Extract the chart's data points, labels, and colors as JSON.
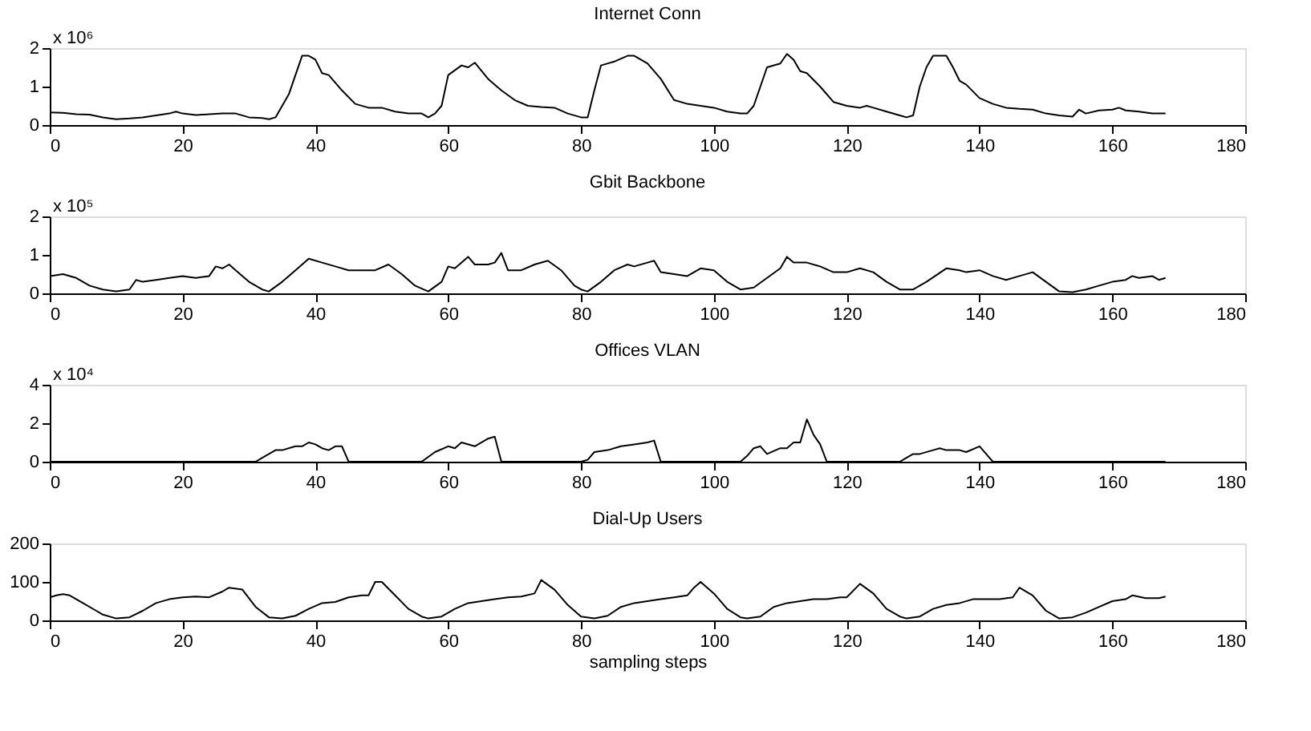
{
  "chart_data": [
    {
      "type": "line",
      "title": "Internet Conn",
      "annotations": [
        "x 10⁶"
      ],
      "grid": false,
      "xlim": [
        0,
        180
      ],
      "xticks": [
        0,
        20,
        40,
        60,
        80,
        100,
        120,
        140,
        160,
        180
      ],
      "ylim": [
        0,
        2
      ],
      "yticks": [
        0,
        1,
        2
      ],
      "x": [
        0,
        2,
        4,
        6,
        8,
        10,
        12,
        14,
        16,
        18,
        19,
        20,
        22,
        24,
        26,
        28,
        30,
        32,
        33,
        34,
        36,
        38,
        39,
        40,
        41,
        42,
        44,
        46,
        48,
        50,
        52,
        54,
        56,
        57,
        58,
        59,
        60,
        62,
        63,
        64,
        66,
        68,
        70,
        72,
        74,
        76,
        78,
        80,
        81,
        82,
        83,
        85,
        87,
        88,
        90,
        92,
        94,
        96,
        98,
        100,
        102,
        104,
        105,
        106,
        107,
        108,
        110,
        111,
        112,
        113,
        114,
        116,
        118,
        120,
        122,
        123,
        124,
        126,
        128,
        129,
        130,
        131,
        132,
        133,
        135,
        136,
        137,
        138,
        140,
        142,
        144,
        146,
        148,
        150,
        152,
        154,
        155,
        156,
        158,
        160,
        161,
        162,
        164,
        166,
        168
      ],
      "series": [
        {
          "color": "#000000",
          "values": [
            0.33,
            0.32,
            0.28,
            0.27,
            0.2,
            0.15,
            0.17,
            0.2,
            0.25,
            0.3,
            0.35,
            0.3,
            0.26,
            0.28,
            0.3,
            0.3,
            0.2,
            0.18,
            0.15,
            0.2,
            0.8,
            1.8,
            1.8,
            1.7,
            1.35,
            1.3,
            0.9,
            0.55,
            0.45,
            0.45,
            0.35,
            0.3,
            0.3,
            0.2,
            0.3,
            0.5,
            1.3,
            1.55,
            1.5,
            1.62,
            1.2,
            0.9,
            0.65,
            0.5,
            0.47,
            0.45,
            0.3,
            0.2,
            0.2,
            0.9,
            1.55,
            1.65,
            1.8,
            1.8,
            1.6,
            1.2,
            0.65,
            0.55,
            0.5,
            0.45,
            0.35,
            0.3,
            0.3,
            0.5,
            1.0,
            1.5,
            1.6,
            1.85,
            1.7,
            1.4,
            1.35,
            1.0,
            0.6,
            0.5,
            0.45,
            0.5,
            0.45,
            0.35,
            0.25,
            0.2,
            0.25,
            1.0,
            1.5,
            1.8,
            1.8,
            1.5,
            1.15,
            1.05,
            0.7,
            0.55,
            0.45,
            0.42,
            0.4,
            0.3,
            0.25,
            0.22,
            0.4,
            0.3,
            0.38,
            0.4,
            0.45,
            0.38,
            0.35,
            0.3,
            0.3
          ]
        }
      ]
    },
    {
      "type": "line",
      "title": "Gbit Backbone",
      "annotations": [
        "x 10⁵"
      ],
      "grid": false,
      "xlim": [
        0,
        180
      ],
      "xticks": [
        0,
        20,
        40,
        60,
        80,
        100,
        120,
        140,
        160,
        180
      ],
      "ylim": [
        0,
        2
      ],
      "yticks": [
        0,
        1,
        2
      ],
      "x": [
        0,
        2,
        4,
        6,
        8,
        10,
        12,
        13,
        14,
        16,
        18,
        20,
        22,
        24,
        25,
        26,
        27,
        28,
        30,
        32,
        33,
        35,
        37,
        39,
        41,
        43,
        45,
        47,
        49,
        51,
        53,
        55,
        57,
        59,
        60,
        61,
        63,
        64,
        66,
        67,
        68,
        69,
        71,
        73,
        75,
        77,
        79,
        80,
        81,
        83,
        85,
        87,
        88,
        90,
        91,
        92,
        94,
        96,
        98,
        100,
        102,
        104,
        106,
        108,
        110,
        111,
        112,
        114,
        116,
        118,
        120,
        122,
        124,
        126,
        128,
        130,
        132,
        135,
        137,
        138,
        140,
        142,
        144,
        146,
        148,
        150,
        152,
        154,
        156,
        158,
        160,
        162,
        163,
        164,
        166,
        167,
        168
      ],
      "series": [
        {
          "color": "#000000",
          "values": [
            0.45,
            0.5,
            0.4,
            0.2,
            0.1,
            0.05,
            0.1,
            0.35,
            0.3,
            0.35,
            0.4,
            0.45,
            0.4,
            0.45,
            0.7,
            0.65,
            0.75,
            0.6,
            0.3,
            0.1,
            0.05,
            0.3,
            0.6,
            0.9,
            0.8,
            0.7,
            0.6,
            0.6,
            0.6,
            0.75,
            0.5,
            0.2,
            0.05,
            0.3,
            0.7,
            0.65,
            0.95,
            0.75,
            0.75,
            0.8,
            1.05,
            0.6,
            0.6,
            0.75,
            0.85,
            0.6,
            0.2,
            0.1,
            0.05,
            0.3,
            0.6,
            0.75,
            0.7,
            0.8,
            0.85,
            0.55,
            0.5,
            0.45,
            0.65,
            0.6,
            0.3,
            0.1,
            0.15,
            0.4,
            0.65,
            0.95,
            0.8,
            0.8,
            0.7,
            0.55,
            0.55,
            0.65,
            0.55,
            0.3,
            0.1,
            0.1,
            0.3,
            0.65,
            0.6,
            0.55,
            0.6,
            0.45,
            0.35,
            0.45,
            0.55,
            0.3,
            0.05,
            0.03,
            0.1,
            0.2,
            0.3,
            0.35,
            0.45,
            0.4,
            0.45,
            0.35,
            0.4
          ]
        }
      ]
    },
    {
      "type": "line",
      "title": "Offices VLAN",
      "annotations": [
        "x 10⁴"
      ],
      "grid": false,
      "xlim": [
        0,
        180
      ],
      "xticks": [
        0,
        20,
        40,
        60,
        80,
        100,
        120,
        140,
        160,
        180
      ],
      "ylim": [
        0,
        4
      ],
      "yticks": [
        0,
        2,
        4
      ],
      "x": [
        0,
        31,
        32,
        33,
        34,
        35,
        37,
        38,
        39,
        40,
        41,
        42,
        43,
        44,
        45,
        56,
        58,
        60,
        61,
        62,
        64,
        66,
        67,
        68,
        80,
        81,
        82,
        84,
        86,
        88,
        90,
        91,
        92,
        104,
        105,
        106,
        107,
        108,
        110,
        111,
        112,
        113,
        114,
        115,
        116,
        117,
        128,
        129,
        130,
        131,
        133,
        134,
        135,
        136,
        137,
        138,
        140,
        141,
        142,
        168
      ],
      "series": [
        {
          "color": "#000000",
          "values": [
            0,
            0,
            0.2,
            0.4,
            0.6,
            0.6,
            0.8,
            0.8,
            1.0,
            0.9,
            0.7,
            0.6,
            0.8,
            0.8,
            0,
            0,
            0.5,
            0.8,
            0.7,
            1.0,
            0.8,
            1.2,
            1.3,
            0,
            0,
            0.1,
            0.5,
            0.6,
            0.8,
            0.9,
            1.0,
            1.1,
            0,
            0,
            0.3,
            0.7,
            0.8,
            0.4,
            0.7,
            0.7,
            1.0,
            1.0,
            2.2,
            1.4,
            0.9,
            0,
            0,
            0.2,
            0.4,
            0.4,
            0.6,
            0.7,
            0.6,
            0.6,
            0.6,
            0.5,
            0.8,
            0.4,
            0,
            0
          ]
        }
      ]
    },
    {
      "type": "line",
      "title": "Dial-Up Users",
      "xlabel": "sampling steps",
      "grid": false,
      "xlim": [
        0,
        180
      ],
      "xticks": [
        0,
        20,
        40,
        60,
        80,
        100,
        120,
        140,
        160,
        180
      ],
      "ylim": [
        0,
        200
      ],
      "yticks": [
        0,
        100,
        200
      ],
      "x": [
        0,
        1,
        2,
        3,
        5,
        7,
        8,
        10,
        12,
        14,
        16,
        18,
        20,
        22,
        24,
        26,
        27,
        29,
        31,
        33,
        35,
        37,
        39,
        41,
        43,
        45,
        47,
        48,
        49,
        50,
        52,
        54,
        56,
        57,
        59,
        61,
        63,
        65,
        67,
        69,
        71,
        73,
        74,
        76,
        78,
        80,
        82,
        84,
        86,
        88,
        90,
        92,
        94,
        96,
        97,
        98,
        100,
        102,
        104,
        105,
        107,
        109,
        111,
        113,
        115,
        117,
        119,
        120,
        122,
        124,
        126,
        128,
        129,
        131,
        133,
        135,
        137,
        139,
        141,
        143,
        145,
        146,
        148,
        150,
        152,
        154,
        156,
        158,
        160,
        162,
        163,
        165,
        167,
        168
      ],
      "series": [
        {
          "color": "#000000",
          "values": [
            60,
            65,
            68,
            65,
            45,
            25,
            15,
            5,
            8,
            25,
            45,
            55,
            60,
            62,
            60,
            75,
            85,
            80,
            35,
            8,
            5,
            12,
            30,
            45,
            48,
            60,
            65,
            65,
            100,
            100,
            65,
            30,
            10,
            5,
            10,
            30,
            45,
            50,
            55,
            60,
            62,
            70,
            105,
            80,
            40,
            10,
            5,
            12,
            35,
            45,
            50,
            55,
            60,
            65,
            85,
            100,
            70,
            30,
            8,
            5,
            10,
            35,
            45,
            50,
            55,
            55,
            60,
            60,
            95,
            70,
            30,
            10,
            5,
            10,
            30,
            40,
            45,
            55,
            55,
            55,
            60,
            85,
            65,
            25,
            5,
            8,
            20,
            35,
            50,
            55,
            65,
            58,
            58,
            62
          ]
        }
      ]
    }
  ]
}
